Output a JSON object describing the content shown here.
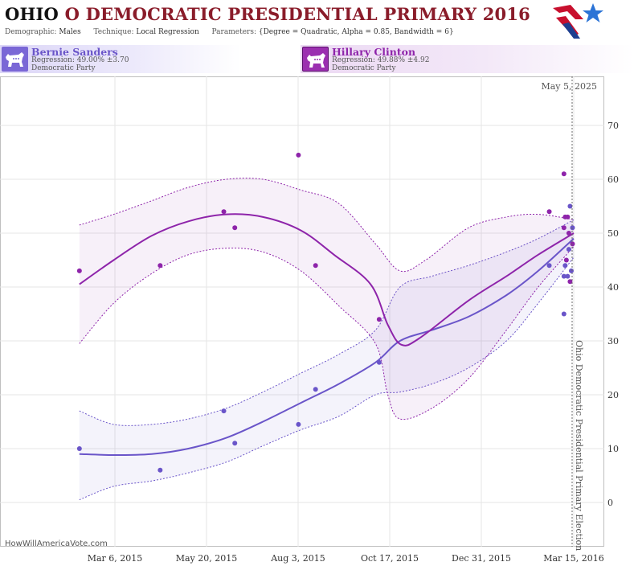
{
  "header": {
    "title_state": "OHIO",
    "title_rest": "O DEMOCRATIC PRESIDENTIAL PRIMARY 2016",
    "demographic_label": "Demographic:",
    "demographic_value": "Males",
    "technique_label": "Technique:",
    "technique_value": "Local Regression",
    "parameters_label": "Parameters:",
    "parameters_value": "{Degree = Quadratic, Alpha = 0.85, Bandwidth = 6}"
  },
  "candidates": [
    {
      "name": "Bernie Sanders",
      "regression": "Regression: 49.00% ±3.70",
      "party": "Democratic Party",
      "color": "#6a55c9"
    },
    {
      "name": "Hillary Clinton",
      "regression": "Regression: 49.88% ±4.92",
      "party": "Democratic Party",
      "color": "#8e24aa"
    }
  ],
  "chart_data": {
    "type": "scatter",
    "x_axis": {
      "type": "date",
      "ticks": [
        "Mar 6, 2015",
        "May 20, 2015",
        "Aug 3, 2015",
        "Oct 17, 2015",
        "Dec 31, 2015",
        "Mar 15, 2016"
      ]
    },
    "y_axis": {
      "min": -5,
      "max": 77,
      "ticks": [
        0,
        10,
        20,
        30,
        40,
        50,
        60,
        70
      ],
      "position": "right"
    },
    "grid": true,
    "annotations": {
      "current_date": "May 5, 2025",
      "election_label": "Ohio Democratic Presidential Primary Election",
      "election_date": "2016-03-15"
    },
    "credit": "HowWillAmericaVote.com",
    "series": [
      {
        "name": "Bernie Sanders",
        "color": "#6a55c9",
        "points": [
          {
            "x": "2015-02-05",
            "y": 10
          },
          {
            "x": "2015-04-12",
            "y": 6
          },
          {
            "x": "2015-06-03",
            "y": 17
          },
          {
            "x": "2015-06-12",
            "y": 11
          },
          {
            "x": "2015-08-03",
            "y": 14.5
          },
          {
            "x": "2015-08-17",
            "y": 21
          },
          {
            "x": "2015-10-08",
            "y": 26
          },
          {
            "x": "2016-02-24",
            "y": 44
          },
          {
            "x": "2016-03-07",
            "y": 35
          },
          {
            "x": "2016-03-07",
            "y": 42
          },
          {
            "x": "2016-03-08",
            "y": 44
          },
          {
            "x": "2016-03-10",
            "y": 42
          },
          {
            "x": "2016-03-11",
            "y": 47
          },
          {
            "x": "2016-03-12",
            "y": 55
          },
          {
            "x": "2016-03-13",
            "y": 43
          },
          {
            "x": "2016-03-14",
            "y": 51
          }
        ],
        "trend": [
          {
            "x": "2015-02-05",
            "y": 9
          },
          {
            "x": "2015-03-05",
            "y": 8.8
          },
          {
            "x": "2015-04-05",
            "y": 9
          },
          {
            "x": "2015-05-05",
            "y": 10
          },
          {
            "x": "2015-06-05",
            "y": 12
          },
          {
            "x": "2015-07-05",
            "y": 15
          },
          {
            "x": "2015-08-05",
            "y": 18.5
          },
          {
            "x": "2015-09-05",
            "y": 22
          },
          {
            "x": "2015-10-05",
            "y": 26
          },
          {
            "x": "2015-10-25",
            "y": 30
          },
          {
            "x": "2015-11-20",
            "y": 32
          },
          {
            "x": "2015-12-20",
            "y": 34.5
          },
          {
            "x": "2016-01-20",
            "y": 38.5
          },
          {
            "x": "2016-02-15",
            "y": 43
          },
          {
            "x": "2016-03-15",
            "y": 49
          }
        ],
        "upper": [
          {
            "x": "2015-02-05",
            "y": 17
          },
          {
            "x": "2015-03-05",
            "y": 14.5
          },
          {
            "x": "2015-04-05",
            "y": 14.5
          },
          {
            "x": "2015-05-05",
            "y": 15.5
          },
          {
            "x": "2015-06-05",
            "y": 17.5
          },
          {
            "x": "2015-07-05",
            "y": 20.5
          },
          {
            "x": "2015-08-05",
            "y": 24
          },
          {
            "x": "2015-09-05",
            "y": 27.5
          },
          {
            "x": "2015-10-05",
            "y": 32
          },
          {
            "x": "2015-10-25",
            "y": 40
          },
          {
            "x": "2015-11-20",
            "y": 42
          },
          {
            "x": "2015-12-20",
            "y": 44
          },
          {
            "x": "2016-01-20",
            "y": 46.5
          },
          {
            "x": "2016-02-15",
            "y": 49
          },
          {
            "x": "2016-03-15",
            "y": 52.5
          }
        ],
        "lower": [
          {
            "x": "2015-02-05",
            "y": 0.5
          },
          {
            "x": "2015-03-05",
            "y": 3
          },
          {
            "x": "2015-04-05",
            "y": 4
          },
          {
            "x": "2015-05-05",
            "y": 5.5
          },
          {
            "x": "2015-06-05",
            "y": 7.5
          },
          {
            "x": "2015-07-05",
            "y": 10.5
          },
          {
            "x": "2015-08-05",
            "y": 13.5
          },
          {
            "x": "2015-09-05",
            "y": 16
          },
          {
            "x": "2015-10-05",
            "y": 20
          },
          {
            "x": "2015-10-25",
            "y": 20.5
          },
          {
            "x": "2015-11-20",
            "y": 22
          },
          {
            "x": "2015-12-20",
            "y": 25
          },
          {
            "x": "2016-01-20",
            "y": 30
          },
          {
            "x": "2016-02-15",
            "y": 37
          },
          {
            "x": "2016-03-15",
            "y": 45.5
          }
        ]
      },
      {
        "name": "Hillary Clinton",
        "color": "#8e24aa",
        "points": [
          {
            "x": "2015-02-05",
            "y": 43
          },
          {
            "x": "2015-04-12",
            "y": 44
          },
          {
            "x": "2015-06-03",
            "y": 54
          },
          {
            "x": "2015-06-12",
            "y": 51
          },
          {
            "x": "2015-08-03",
            "y": 64.5
          },
          {
            "x": "2015-08-17",
            "y": 44
          },
          {
            "x": "2015-10-08",
            "y": 34
          },
          {
            "x": "2016-02-24",
            "y": 54
          },
          {
            "x": "2016-03-07",
            "y": 61
          },
          {
            "x": "2016-03-07",
            "y": 51
          },
          {
            "x": "2016-03-08",
            "y": 53
          },
          {
            "x": "2016-03-09",
            "y": 45
          },
          {
            "x": "2016-03-10",
            "y": 53
          },
          {
            "x": "2016-03-11",
            "y": 50
          },
          {
            "x": "2016-03-12",
            "y": 41
          },
          {
            "x": "2016-03-14",
            "y": 48
          }
        ],
        "trend": [
          {
            "x": "2015-02-05",
            "y": 40.5
          },
          {
            "x": "2015-03-05",
            "y": 45
          },
          {
            "x": "2015-04-05",
            "y": 49.5
          },
          {
            "x": "2015-05-05",
            "y": 52.2
          },
          {
            "x": "2015-06-05",
            "y": 53.5
          },
          {
            "x": "2015-07-05",
            "y": 53
          },
          {
            "x": "2015-08-05",
            "y": 50.5
          },
          {
            "x": "2015-09-01",
            "y": 46
          },
          {
            "x": "2015-10-01",
            "y": 40.5
          },
          {
            "x": "2015-10-15",
            "y": 33
          },
          {
            "x": "2015-10-26",
            "y": 29.3
          },
          {
            "x": "2015-11-10",
            "y": 30.5
          },
          {
            "x": "2015-12-20",
            "y": 37.5
          },
          {
            "x": "2016-01-20",
            "y": 42
          },
          {
            "x": "2016-02-15",
            "y": 46
          },
          {
            "x": "2016-03-15",
            "y": 50
          }
        ],
        "upper": [
          {
            "x": "2015-02-05",
            "y": 51.5
          },
          {
            "x": "2015-03-05",
            "y": 53.5
          },
          {
            "x": "2015-04-05",
            "y": 56
          },
          {
            "x": "2015-05-05",
            "y": 58.5
          },
          {
            "x": "2015-06-05",
            "y": 60
          },
          {
            "x": "2015-07-05",
            "y": 60
          },
          {
            "x": "2015-08-05",
            "y": 58
          },
          {
            "x": "2015-09-05",
            "y": 55.5
          },
          {
            "x": "2015-10-05",
            "y": 48
          },
          {
            "x": "2015-10-25",
            "y": 43
          },
          {
            "x": "2015-11-15",
            "y": 45
          },
          {
            "x": "2015-12-20",
            "y": 51
          },
          {
            "x": "2016-01-20",
            "y": 53
          },
          {
            "x": "2016-02-15",
            "y": 53.5
          },
          {
            "x": "2016-03-15",
            "y": 52.5
          }
        ],
        "lower": [
          {
            "x": "2015-02-05",
            "y": 29.5
          },
          {
            "x": "2015-03-05",
            "y": 37
          },
          {
            "x": "2015-04-05",
            "y": 42.5
          },
          {
            "x": "2015-05-05",
            "y": 46
          },
          {
            "x": "2015-06-05",
            "y": 47.2
          },
          {
            "x": "2015-07-05",
            "y": 46.5
          },
          {
            "x": "2015-08-05",
            "y": 43
          },
          {
            "x": "2015-09-05",
            "y": 36.5
          },
          {
            "x": "2015-10-05",
            "y": 29.5
          },
          {
            "x": "2015-10-15",
            "y": 20
          },
          {
            "x": "2015-10-25",
            "y": 15.5
          },
          {
            "x": "2015-11-20",
            "y": 17.5
          },
          {
            "x": "2015-12-20",
            "y": 23
          },
          {
            "x": "2016-01-20",
            "y": 32
          },
          {
            "x": "2016-02-15",
            "y": 40
          },
          {
            "x": "2016-03-15",
            "y": 47.5
          }
        ]
      }
    ]
  }
}
